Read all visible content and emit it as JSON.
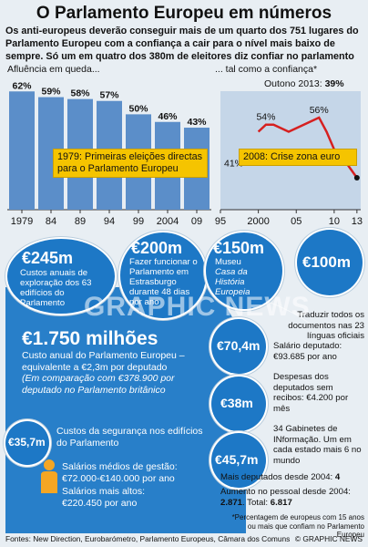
{
  "title": "O Parlamento Europeu em números",
  "intro": "Os anti-europeus deverão conseguir mais de um quarto dos 751 lugares do Parlamento Europeu com a confiança a cair para o nível mais baixo de sempre. Só um em quatro dos 380m de eleitores diz confiar no parlamento",
  "chart_data": [
    {
      "type": "bar",
      "title": "Afluência em queda...",
      "categories": [
        "1979",
        "84",
        "89",
        "94",
        "99",
        "2004",
        "09"
      ],
      "values": [
        62,
        59,
        58,
        57,
        50,
        46,
        43
      ],
      "value_labels": [
        "62%",
        "59%",
        "58%",
        "57%",
        "50%",
        "46%",
        "43%"
      ],
      "color": "#5b8ec9",
      "annotation": "1979: Primeiras eleições directas para o Parlamento Europeu"
    },
    {
      "type": "line",
      "title": "... tal como a confiança*",
      "x_ticks": [
        "95",
        "2000",
        "05",
        "10",
        "13"
      ],
      "x_range": [
        1995,
        2013.5
      ],
      "y_range": [
        30,
        65
      ],
      "series": [
        {
          "color": "#d62020",
          "x": [
            2000,
            2001,
            2002,
            2003,
            2004,
            2005,
            2006,
            2007,
            2008,
            2009,
            2010,
            2011,
            2012,
            2013
          ],
          "y": [
            52,
            54,
            54,
            53,
            52,
            53,
            54,
            55,
            56,
            52,
            47,
            45,
            42,
            39
          ]
        }
      ],
      "point_labels": [
        {
          "x": 1995,
          "y": 41,
          "label": "41%"
        },
        {
          "x": 2001,
          "y": 54,
          "label": "54%"
        },
        {
          "x": 2008,
          "y": 56,
          "label": "56%"
        }
      ],
      "latest_label": "Outono 2013:",
      "latest_value": "39%",
      "annotation": "2008: Crise zona euro"
    }
  ],
  "circles": {
    "c245": {
      "value": "€245m",
      "text": "Custos anuais de exploração dos 63 edifícios do Parlamento"
    },
    "c200": {
      "value": "€200m",
      "text": "Fazer funcionar o Parlamento em Estrasburgo durante 48 dias por ano"
    },
    "c150": {
      "value": "€150m",
      "text_1": "Museu",
      "text_2": "Casa da História Europeia"
    },
    "c100": {
      "value": "€100m",
      "note": "Traduzir todos os documentos nas 23 línguas oficiais"
    },
    "main": {
      "value": "€1.750 milhões",
      "text_1": "Custo anual do Parlamento Europeu – equivalente a €2,3m por deputado",
      "text_2": "(Em comparação com €378.900 por deputado no Parlamento britânico"
    },
    "c704": {
      "value": "€70,4m",
      "note_1": "Salário deputado:",
      "note_2": "€93.685 por ano"
    },
    "c38": {
      "value": "€38m",
      "note": "Despesas dos deputados sem recibos: €4.200 por mês"
    },
    "c457": {
      "value": "€45,7m",
      "note": "34 Gabinetes de INformação. Um em cada estado mais 6 no mundo"
    },
    "c357": {
      "value": "€35,7m",
      "note": "Custos da segurança nos edifícios do Parlamento"
    }
  },
  "salaries": {
    "avg_label": "Salários médios de gestão:",
    "avg_value": "€72.000-€140.000 por ano",
    "top_label": "Salários mais altos:",
    "top_value": "€220.450 por ano"
  },
  "extra_deputies": {
    "label": "Mais deputados desde 2004:",
    "value": "4"
  },
  "staff_increase": {
    "text": "Aumento no pessoal desde 2004:",
    "v1": "2.871",
    "total_label": ". Total:",
    "v2": "6.817"
  },
  "footnote": "*Percentagem de europeus com 15 anos ou mais que confiam no Parlamento Europeu",
  "sources": "Fontes: New Direction, Eurobarómetro, Parlamento Europeus, Câmara dos Comuns",
  "credit": "© GRAPHIC NEWS",
  "watermark": "GRAPHIC NEWS"
}
